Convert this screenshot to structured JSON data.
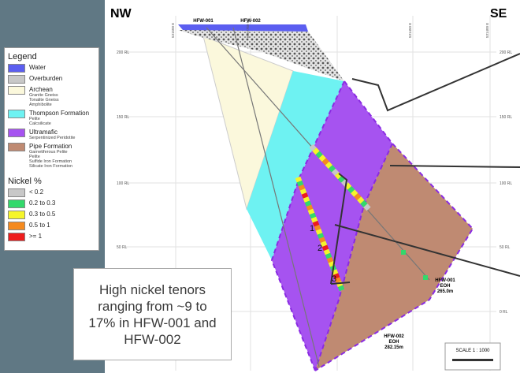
{
  "header": {
    "left": "NW",
    "right": "SE"
  },
  "holes": [
    {
      "name": "HFW-001",
      "end": "EOH",
      "depth": "265.0m"
    },
    {
      "name": "HFW-002",
      "end": "EOH",
      "depth": "282.15m"
    }
  ],
  "elevations": [
    "200 RL",
    "150 RL",
    "100 RL",
    "50 RL",
    "0 RL"
  ],
  "coordinates": [
    "531500 E",
    "6987750 N",
    "531450 E",
    "531400 E"
  ],
  "legend": {
    "title": "Legend",
    "items": [
      {
        "label": "Water",
        "color": "#5b5ef0",
        "notes": []
      },
      {
        "label": "Overburden",
        "color": "#c8c8c8",
        "notes": []
      },
      {
        "label": "Archean",
        "color": "#fbf8dc",
        "notes": [
          "Granite Gneiss",
          "Tonalite Gneiss",
          "Amphibolite"
        ]
      },
      {
        "label": "Thompson Formation",
        "color": "#6ef2f2",
        "notes": [
          "Pelite",
          "Calcsilicate"
        ]
      },
      {
        "label": "Ultramafic",
        "color": "#a653f0",
        "notes": [
          "Serpentinized Peridotite"
        ]
      },
      {
        "label": "Pipe Formation",
        "color": "#bf8a72",
        "notes": [
          "Garnetiferous Pelite",
          "Pelite",
          "Sulfide Iron Formation",
          "Silicate Iron Formation"
        ]
      }
    ]
  },
  "nickel": {
    "title": "Nickel %",
    "items": [
      {
        "label": "< 0.2",
        "color": "#c8c8c8"
      },
      {
        "label": "0.2 to 0.3",
        "color": "#33d96b"
      },
      {
        "label": "0.3 to 0.5",
        "color": "#f5f52a"
      },
      {
        "label": "0.5 to 1",
        "color": "#f58a1f"
      },
      {
        "label": ">= 1",
        "color": "#ee1c1c"
      }
    ]
  },
  "markers": [
    "1",
    "2",
    "3"
  ],
  "callout": [
    "High nickel tenors",
    "ranging from ~9 to",
    "17% in HFW-001 and",
    "HFW-002"
  ],
  "scale": "SCALE 1 : 1000"
}
